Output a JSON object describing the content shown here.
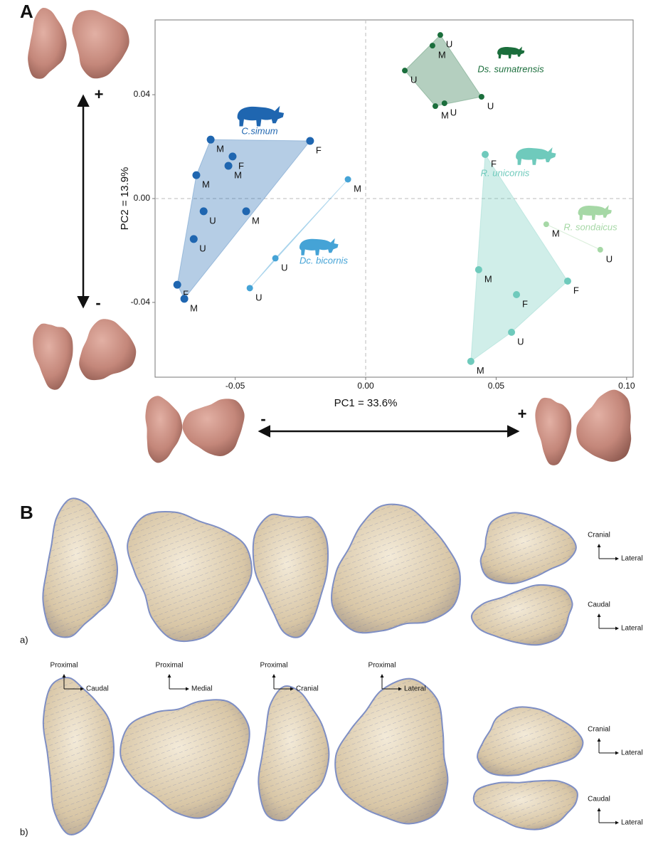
{
  "chart_data": {
    "type": "scatter",
    "xlabel": "PC1 = 33.6%",
    "ylabel": "PC2 = 13.9%",
    "xlim": [
      -0.0807,
      0.1025
    ],
    "ylim": [
      -0.0688,
      0.0688
    ],
    "xticks": [
      -0.05,
      {
        "value": 0,
        "label": "0.00"
      },
      0.05,
      {
        "value": 0.1,
        "label": "0.10"
      }
    ],
    "yticks": [
      -0.04,
      {
        "value": 0,
        "label": "0.00"
      },
      0.04
    ],
    "zero_lines": true,
    "hulls": true,
    "series": [
      {
        "name": "C.simum",
        "color": "#1f66b0",
        "x": [
          -0.0594,
          -0.0213,
          -0.051,
          -0.0526,
          -0.0649,
          -0.0621,
          -0.0458,
          -0.0659,
          -0.0722,
          -0.0695
        ],
        "y": [
          0.0227,
          0.0222,
          0.0162,
          0.0126,
          0.009,
          -0.0049,
          -0.0049,
          -0.0156,
          -0.0332,
          -0.0386
        ],
        "labels": [
          "M",
          "F",
          "F",
          "M",
          "M",
          "U",
          "M",
          "U",
          "F",
          "M"
        ]
      },
      {
        "name": "Dc. bicornis",
        "color": "#45a3d6",
        "x": [
          -0.0068,
          -0.0346,
          -0.0444
        ],
        "y": [
          0.0074,
          -0.023,
          -0.0345
        ],
        "labels": [
          "M",
          "U",
          "U"
        ]
      },
      {
        "name": "Ds. sumatrensis",
        "color": "#1b6e3c",
        "x": [
          0.0286,
          0.0256,
          0.015,
          0.0444,
          0.0302,
          0.0267
        ],
        "y": [
          0.063,
          0.0589,
          0.0493,
          0.0392,
          0.0367,
          0.0356
        ],
        "labels": [
          "U",
          "M",
          "U",
          "U",
          "U",
          "M"
        ]
      },
      {
        "name": "R. unicornis",
        "color": "#6fcabc",
        "x": [
          0.0458,
          0.0433,
          0.0774,
          0.0578,
          0.0559,
          0.0403
        ],
        "y": [
          0.017,
          -0.0274,
          -0.0318,
          -0.037,
          -0.0515,
          -0.0627
        ],
        "labels": [
          "F",
          "M",
          "F",
          "F",
          "U",
          "M"
        ]
      },
      {
        "name": "R. sondaicus",
        "color": "#a6d8a6",
        "x": [
          0.0692,
          0.0899
        ],
        "y": [
          -0.0099,
          -0.0197
        ],
        "labels": [
          "M",
          "U"
        ]
      }
    ]
  },
  "figure": {
    "panel_a": "A",
    "panel_b": "B",
    "pc2_plus": "+",
    "pc2_minus": "-",
    "pc1_minus": "-",
    "pc1_plus": "+"
  },
  "panel_b": {
    "row_labels": [
      "a)",
      "b)"
    ],
    "bottom_axes": [
      {
        "up": "Proximal",
        "right": "Caudal"
      },
      {
        "up": "Proximal",
        "right": "Medial"
      },
      {
        "up": "Proximal",
        "right": "Cranial"
      },
      {
        "up": "Proximal",
        "right": "Lateral"
      }
    ],
    "side_axes": [
      {
        "up": "Cranial",
        "right": "Lateral"
      },
      {
        "up": "Caudal",
        "right": "Lateral"
      },
      {
        "up": "Cranial",
        "right": "Lateral"
      },
      {
        "up": "Caudal",
        "right": "Lateral"
      }
    ]
  }
}
